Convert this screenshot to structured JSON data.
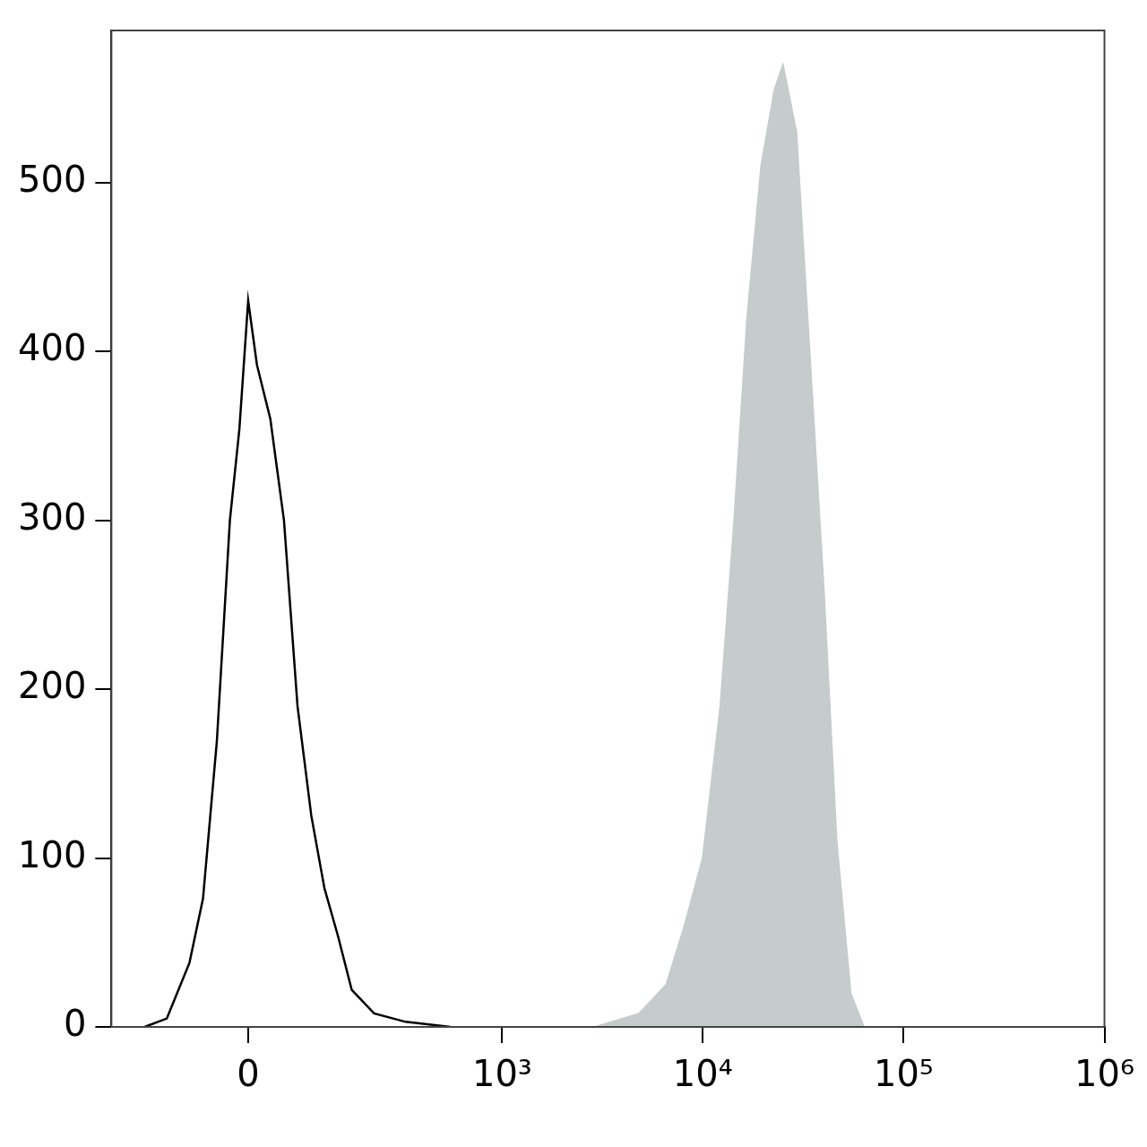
{
  "chart_data": {
    "type": "line",
    "series": [
      {
        "type": "line",
        "color": "#000000",
        "x": [
          -162,
          -117,
          -79,
          -59,
          -40,
          -23,
          -11,
          0,
          11,
          28,
          46,
          65,
          86,
          108,
          133,
          162,
          218,
          323,
          549
        ],
        "values": [
          0,
          5,
          38,
          76,
          169,
          300,
          354,
          430,
          392,
          360,
          300,
          190,
          125,
          82,
          54,
          22,
          8,
          3,
          0
        ]
      },
      {
        "type": "area",
        "color": "#c5cccb",
        "x": [
          2890,
          4810,
          6560,
          8090,
          9970,
          12200,
          14300,
          16600,
          19500,
          22700,
          25100,
          29300,
          34100,
          40100,
          46500,
          54600,
          63500
        ],
        "values": [
          0,
          8,
          25,
          60,
          100,
          190,
          300,
          420,
          510,
          555,
          570,
          530,
          400,
          260,
          110,
          20,
          0
        ]
      }
    ],
    "xlim": [
      -250,
      1000000
    ],
    "xticks": [
      0,
      {
        "value": 1000,
        "label": "10³"
      },
      {
        "value": 10000,
        "label": "10⁴"
      },
      {
        "value": 100000,
        "label": "10⁵"
      },
      {
        "value": 1000000,
        "label": "10⁶"
      }
    ],
    "ylim": [
      0,
      590
    ],
    "yticks": [
      0,
      100,
      200,
      300,
      400,
      500
    ],
    "grid": false,
    "tick_labels": true
  }
}
